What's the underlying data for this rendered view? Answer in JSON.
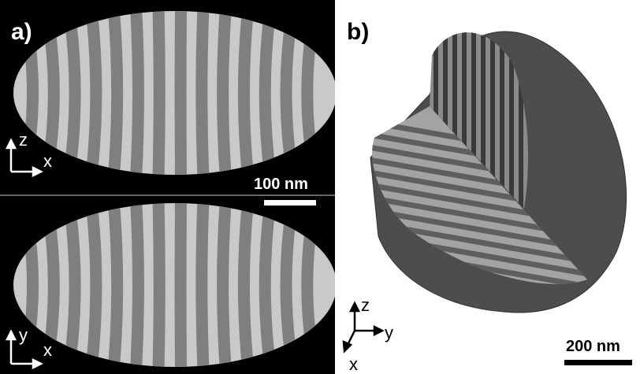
{
  "panels": [
    {
      "label": "a)",
      "views": [
        {
          "axes": [
            "z",
            "x"
          ],
          "scale_bar": "100 nm"
        },
        {
          "axes": [
            "y",
            "x"
          ]
        }
      ]
    },
    {
      "label": "b)",
      "axes": [
        "z",
        "y",
        "x"
      ],
      "scale_bar": "200 nm"
    }
  ]
}
